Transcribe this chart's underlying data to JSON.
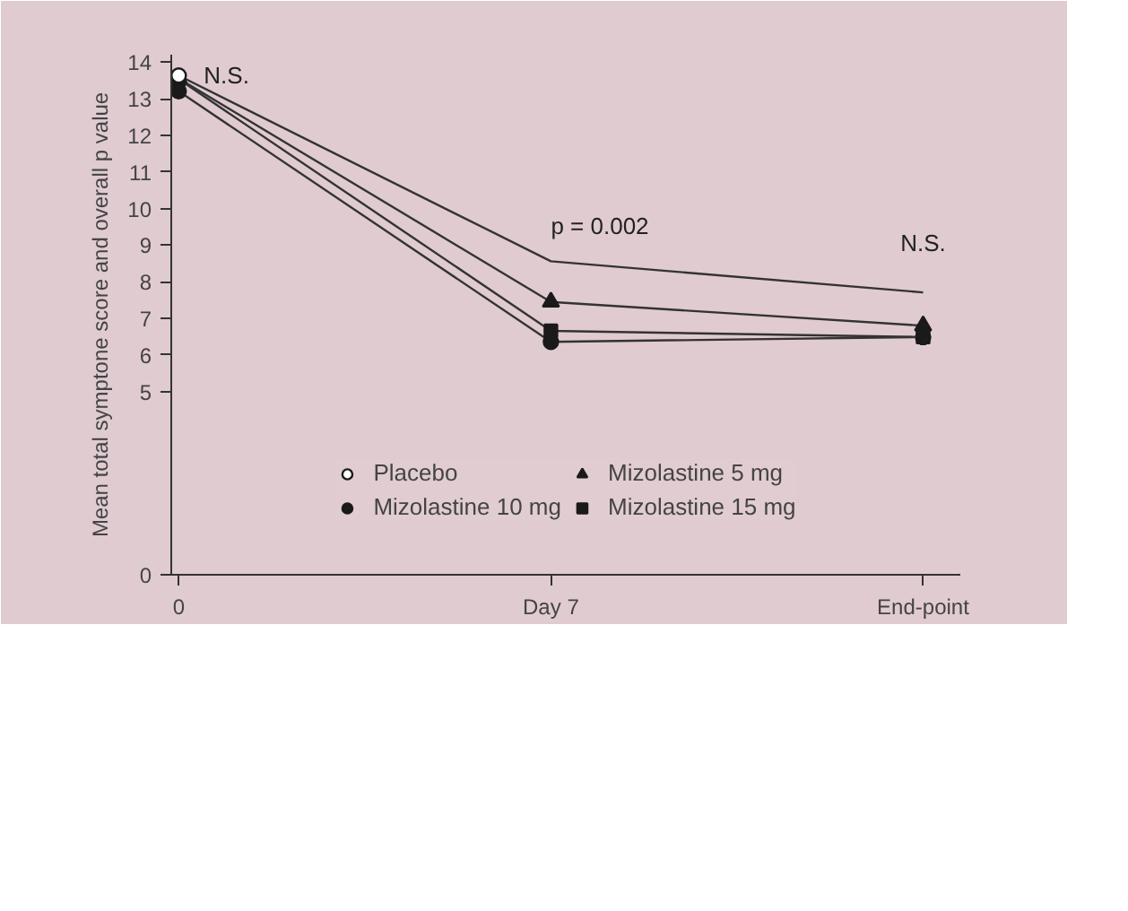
{
  "chart_data": {
    "type": "line",
    "ylabel": "Mean total symptone score and overall p value",
    "categories": [
      "0",
      "Day 7",
      "End-point"
    ],
    "series": [
      {
        "name": "Placebo",
        "type": "scatter",
        "marker": "circle",
        "color": "#ffffff",
        "values": [
          13.63,
          null,
          null
        ]
      },
      {
        "type": "line",
        "marker": "none",
        "color": "#333333",
        "values": [
          13.63,
          8.56,
          7.71
        ]
      },
      {
        "name": "Mizolastine 10 mg",
        "marker": "circle",
        "color": "#1a1a1a",
        "values": [
          13.2,
          6.36,
          6.49
        ]
      },
      {
        "name": "Mizolastine 5 mg",
        "marker": "triangle",
        "color": "#1a1a1a",
        "values": [
          13.55,
          7.45,
          6.8
        ]
      },
      {
        "name": "Mizolastine 15 mg",
        "marker": "square",
        "color": "#1a1a1a",
        "values": [
          13.53,
          6.66,
          6.49
        ]
      }
    ],
    "ylim": [
      0,
      14.2
    ],
    "yticks": [
      0,
      5,
      6,
      7,
      8,
      9,
      10,
      11,
      12,
      13,
      14
    ],
    "annotations": [
      {
        "text": "N.S.",
        "x": "0",
        "y": 13.63
      },
      {
        "text": "p = 0.002",
        "x": "Day 7",
        "y": 8.56
      },
      {
        "text": "N.S.",
        "x": "End-point",
        "y": 7.71
      }
    ],
    "legend": "bottom",
    "grid": false
  }
}
